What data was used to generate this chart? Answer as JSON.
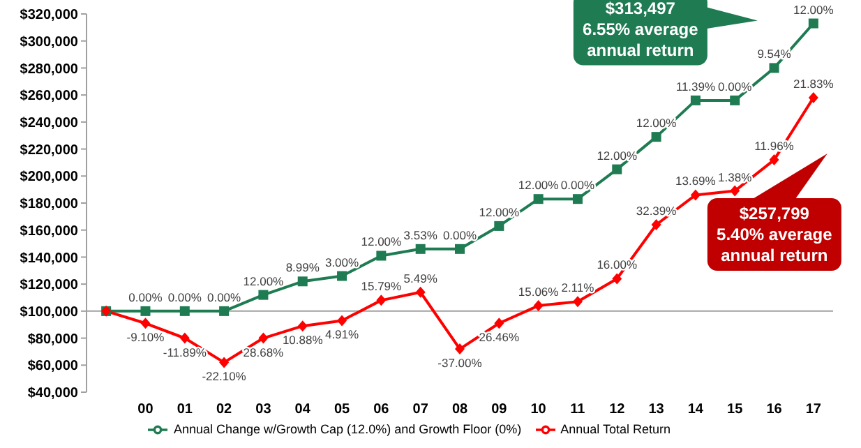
{
  "chart_data": {
    "type": "line",
    "categories": [
      null,
      "00",
      "01",
      "02",
      "03",
      "04",
      "05",
      "06",
      "07",
      "08",
      "09",
      "10",
      "11",
      "12",
      "13",
      "14",
      "15",
      "16",
      "17"
    ],
    "series": [
      {
        "name": "Annual Change w/Growth Cap (12.0%) and Growth Floor (0%)",
        "color": "#1e7b52",
        "marker": "square",
        "values": [
          100000,
          100000,
          100000,
          100000,
          112000,
          122000,
          126000,
          141000,
          146000,
          146000,
          163000,
          183000,
          183000,
          205000,
          229000,
          256000,
          256000,
          280000,
          313000
        ]
      },
      {
        "name": "Annual Total Return",
        "color": "#ff0000",
        "marker": "diamond",
        "values": [
          100000,
          91000,
          80000,
          62000,
          80000,
          89000,
          93000,
          108000,
          114000,
          72000,
          91000,
          104000,
          107000,
          124000,
          164000,
          186000,
          189000,
          212000,
          258000
        ]
      }
    ],
    "ylim": [
      40000,
      320000
    ],
    "yticks": [
      {
        "value": 40000,
        "label": "$40,000"
      },
      {
        "value": 60000,
        "label": "$60,000"
      },
      {
        "value": 80000,
        "label": "$80,000"
      },
      {
        "value": 100000,
        "label": "$100,000"
      },
      {
        "value": 120000,
        "label": "$120,000"
      },
      {
        "value": 140000,
        "label": "$140,000"
      },
      {
        "value": 160000,
        "label": "$160,000"
      },
      {
        "value": 180000,
        "label": "$180,000"
      },
      {
        "value": 200000,
        "label": "$200,000"
      },
      {
        "value": 220000,
        "label": "$220,000"
      },
      {
        "value": 240000,
        "label": "$240,000"
      },
      {
        "value": 260000,
        "label": "$260,000"
      },
      {
        "value": 280000,
        "label": "$280,000"
      },
      {
        "value": 300000,
        "label": "$300,000"
      },
      {
        "value": 320000,
        "label": "$320,000"
      }
    ],
    "ref_lines": [
      {
        "axis": "y",
        "value": 100000,
        "color": "#a0a0a0"
      }
    ],
    "annotations": [
      "$313,497\n6.55% average\nannual return",
      "$257,799\n5.40% average\nannual return",
      {
        "text": "0.00%",
        "x": "00",
        "y": 100000
      },
      {
        "text": "0.00%",
        "x": "01",
        "y": 100000
      },
      {
        "text": "0.00%",
        "x": "02",
        "y": 100000
      },
      {
        "text": "12.00%",
        "x": "03",
        "y": 112000
      },
      {
        "text": "8.99%",
        "x": "04",
        "y": 122000
      },
      {
        "text": "3.00%",
        "x": "05",
        "y": 126000
      },
      {
        "text": "12.00%",
        "x": "06",
        "y": 141000
      },
      {
        "text": "3.53%",
        "x": "07",
        "y": 146000
      },
      {
        "text": "0.00%",
        "x": "08",
        "y": 146000
      },
      {
        "text": "12.00%",
        "x": "09",
        "y": 163000
      },
      {
        "text": "12.00%",
        "x": "10",
        "y": 183000
      },
      {
        "text": "0.00%",
        "x": "11",
        "y": 183000
      },
      {
        "text": "12.00%",
        "x": "12",
        "y": 205000
      },
      {
        "text": "12.00%",
        "x": "13",
        "y": 229000
      },
      {
        "text": "11.39%",
        "x": "14",
        "y": 256000
      },
      {
        "text": "0.00%",
        "x": "15",
        "y": 256000
      },
      {
        "text": "9.54%",
        "x": "16",
        "y": 280000
      },
      {
        "text": "12.00%",
        "x": "17",
        "y": 313000
      },
      {
        "text": "-9.10%",
        "x": "00",
        "y": 91000
      },
      {
        "text": "-11.89%",
        "x": "01",
        "y": 80000
      },
      {
        "text": "-22.10%",
        "x": "02",
        "y": 62000
      },
      {
        "text": "28.68%",
        "x": "03",
        "y": 80000
      },
      {
        "text": "10.88%",
        "x": "04",
        "y": 89000
      },
      {
        "text": "4.91%",
        "x": "05",
        "y": 93000
      },
      {
        "text": "15.79%",
        "x": "06",
        "y": 108000
      },
      {
        "text": "5.49%",
        "x": "07",
        "y": 114000
      },
      {
        "text": "-37.00%",
        "x": "08",
        "y": 72000
      },
      {
        "text": "26.46%",
        "x": "09",
        "y": 91000
      },
      {
        "text": "15.06%",
        "x": "10",
        "y": 104000
      },
      {
        "text": "2.11%",
        "x": "11",
        "y": 107000
      },
      {
        "text": "16.00%",
        "x": "12",
        "y": 124000
      },
      {
        "text": "32.39%",
        "x": "13",
        "y": 164000
      },
      {
        "text": "13.69%",
        "x": "14",
        "y": 186000
      },
      {
        "text": "1.38%",
        "x": "15",
        "y": 189000
      },
      {
        "text": "11.96%",
        "x": "16",
        "y": 212000
      },
      {
        "text": "21.83%",
        "x": "17",
        "y": 258000
      }
    ],
    "grid": false,
    "legend": "bottom",
    "line_style": "solid"
  }
}
